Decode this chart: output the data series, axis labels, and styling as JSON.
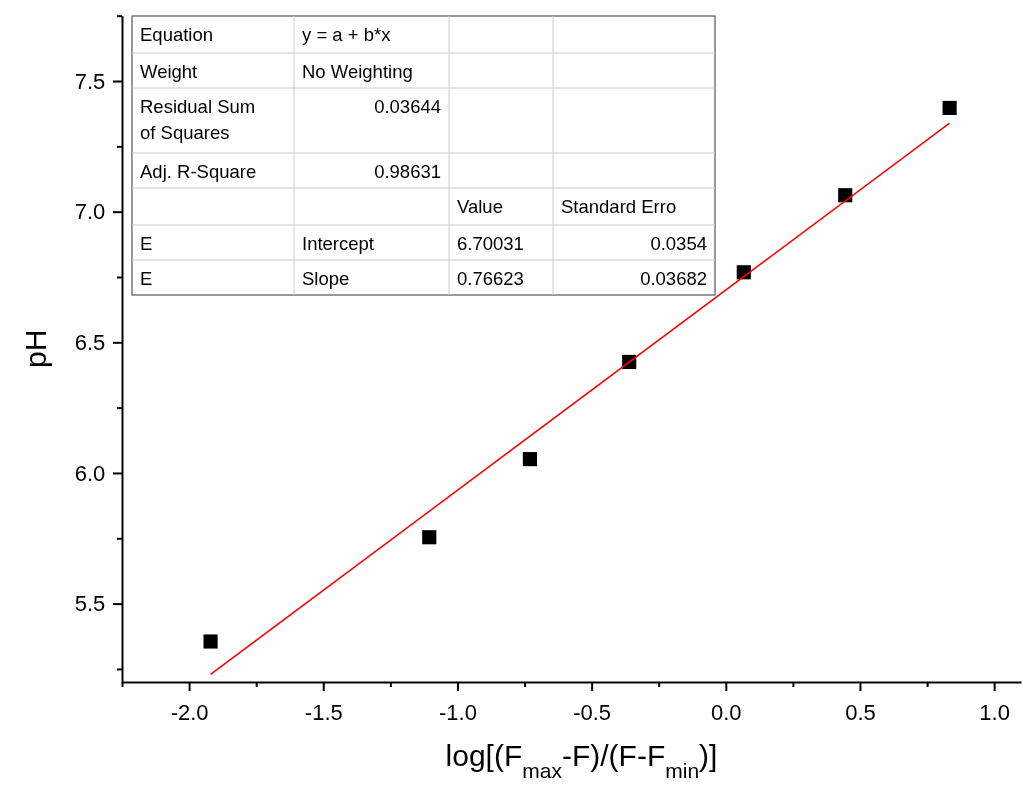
{
  "chart_data": {
    "type": "scatter",
    "xlabel": "log[(F$_{max}$-F)/(F-F$_{min}$)]",
    "ylabel": "pH",
    "xlim": [
      -2.25,
      1.1
    ],
    "ylim": [
      5.2,
      7.75
    ],
    "xticks": [
      {
        "value": -2.25,
        "label": null
      },
      {
        "value": -2,
        "label": "-2.0"
      },
      {
        "value": -1.75,
        "label": null
      },
      -1.5,
      {
        "value": -1.25,
        "label": null
      },
      {
        "value": -1,
        "label": "-1.0"
      },
      {
        "value": -0.75,
        "label": null
      },
      -0.5,
      {
        "value": -0.25,
        "label": null
      },
      {
        "value": 0,
        "label": "0.0"
      },
      {
        "value": 0.25,
        "label": null
      },
      0.5,
      {
        "value": 0.75,
        "label": null
      },
      {
        "value": 1,
        "label": "1.0"
      }
    ],
    "yticks": [
      {
        "value": 5.25,
        "label": null
      },
      5.5,
      {
        "value": 5.75,
        "label": null
      },
      {
        "value": 6,
        "label": "6.0"
      },
      {
        "value": 6.25,
        "label": null
      },
      6.5,
      {
        "value": 6.75,
        "label": null
      },
      {
        "value": 7,
        "label": "7.0"
      },
      {
        "value": 7.25,
        "label": null
      },
      7.5,
      {
        "value": 7.75,
        "label": null
      }
    ],
    "grid": false,
    "series": [
      {
        "color": "#000000",
        "marker": "square",
        "x": [
          -1.92,
          -1.105,
          -0.73,
          -0.36,
          0.067,
          0.445,
          0.834
        ],
        "values": [
          5.355,
          5.754,
          6.053,
          6.425,
          6.768,
          7.063,
          7.397
        ]
      },
      {
        "type": "line",
        "color": "#ff0000",
        "marker": "none",
        "line_style": "solid",
        "x": [
          -1.92,
          0.834
        ],
        "values": [
          5.229,
          7.339
        ]
      }
    ],
    "annotations": [
      "Equation",
      "y = a + b*x",
      "Weight",
      "No Weighting",
      "Residual Sum of Squares",
      "0.03644",
      "Adj. R-Square",
      "0.98631",
      "Value",
      "Standard Erro",
      "E",
      "Intercept",
      "6.70031",
      "0.0354",
      "E",
      "Slope",
      "0.76623",
      "0.03682"
    ]
  }
}
